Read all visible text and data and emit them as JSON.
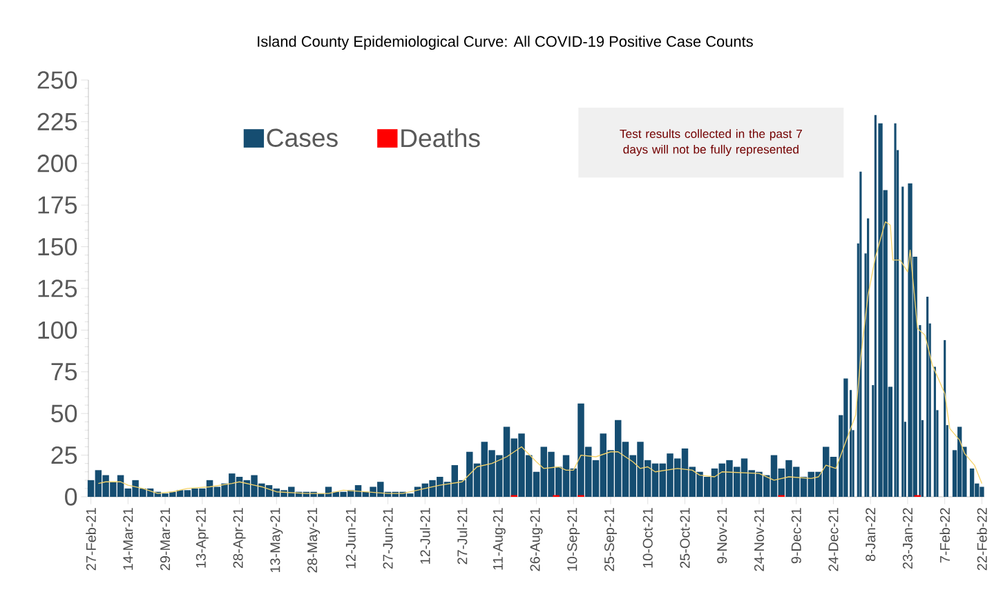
{
  "chart_data": {
    "type": "bar",
    "title": "Island County Epidemiological Curve: All COVID-19 Positive Case Counts",
    "annotations": [
      "Test results collected in the past 7 days will not be fully represented"
    ],
    "xlim": [
      "2021-02-26",
      "2022-02-23"
    ],
    "xticks": [
      {
        "value": "2021-02-27",
        "label": "27-Feb-21"
      },
      {
        "value": "2021-03-14",
        "label": "14-Mar-21"
      },
      {
        "value": "2021-03-29",
        "label": "29-Mar-21"
      },
      {
        "value": "2021-04-13",
        "label": "13-Apr-21"
      },
      {
        "value": "2021-04-28",
        "label": "28-Apr-21"
      },
      {
        "value": "2021-05-13",
        "label": "13-May-21"
      },
      {
        "value": "2021-05-28",
        "label": "28-May-21"
      },
      {
        "value": "2021-06-12",
        "label": "12-Jun-21"
      },
      {
        "value": "2021-06-27",
        "label": "27-Jun-21"
      },
      {
        "value": "2021-07-12",
        "label": "12-Jul-21"
      },
      {
        "value": "2021-07-27",
        "label": "27-Jul-21"
      },
      {
        "value": "2021-08-11",
        "label": "11-Aug-21"
      },
      {
        "value": "2021-08-26",
        "label": "26-Aug-21"
      },
      {
        "value": "2021-09-10",
        "label": "10-Sep-21"
      },
      {
        "value": "2021-09-25",
        "label": "25-Sep-21"
      },
      {
        "value": "2021-10-10",
        "label": "10-Oct-21"
      },
      {
        "value": "2021-10-25",
        "label": "25-Oct-21"
      },
      {
        "value": "2021-11-09",
        "label": "9-Nov-21"
      },
      {
        "value": "2021-11-24",
        "label": "24-Nov-21"
      },
      {
        "value": "2021-12-09",
        "label": "9-Dec-21"
      },
      {
        "value": "2021-12-24",
        "label": "24-Dec-21"
      },
      {
        "value": "2022-01-08",
        "label": "8-Jan-22"
      },
      {
        "value": "2022-01-23",
        "label": "23-Jan-22"
      },
      {
        "value": "2022-02-07",
        "label": "7-Feb-22"
      },
      {
        "value": "2022-02-22",
        "label": "22-Feb-22"
      }
    ],
    "ylim": [
      0,
      250
    ],
    "yticks": [
      0,
      25,
      50,
      75,
      100,
      125,
      150,
      175,
      200,
      225,
      250
    ],
    "legend": "top left",
    "series": [
      {
        "name": "Cases",
        "color": "#154d71",
        "x": [
          "2021-02-27",
          "2021-03-02",
          "2021-03-05",
          "2021-03-08",
          "2021-03-11",
          "2021-03-14",
          "2021-03-17",
          "2021-03-20",
          "2021-03-23",
          "2021-03-26",
          "2021-03-29",
          "2021-04-01",
          "2021-04-04",
          "2021-04-07",
          "2021-04-10",
          "2021-04-13",
          "2021-04-16",
          "2021-04-19",
          "2021-04-22",
          "2021-04-25",
          "2021-04-28",
          "2021-05-01",
          "2021-05-04",
          "2021-05-07",
          "2021-05-10",
          "2021-05-13",
          "2021-05-16",
          "2021-05-19",
          "2021-05-22",
          "2021-05-25",
          "2021-05-28",
          "2021-05-31",
          "2021-06-03",
          "2021-06-06",
          "2021-06-09",
          "2021-06-12",
          "2021-06-15",
          "2021-06-18",
          "2021-06-21",
          "2021-06-24",
          "2021-06-27",
          "2021-06-30",
          "2021-07-03",
          "2021-07-06",
          "2021-07-09",
          "2021-07-12",
          "2021-07-15",
          "2021-07-18",
          "2021-07-21",
          "2021-07-24",
          "2021-07-27",
          "2021-07-30",
          "2021-08-02",
          "2021-08-05",
          "2021-08-08",
          "2021-08-11",
          "2021-08-14",
          "2021-08-17",
          "2021-08-20",
          "2021-08-23",
          "2021-08-26",
          "2021-08-29",
          "2021-09-01",
          "2021-09-04",
          "2021-09-07",
          "2021-09-10",
          "2021-09-13",
          "2021-09-16",
          "2021-09-19",
          "2021-09-22",
          "2021-09-25",
          "2021-09-28",
          "2021-10-01",
          "2021-10-04",
          "2021-10-07",
          "2021-10-10",
          "2021-10-13",
          "2021-10-16",
          "2021-10-19",
          "2021-10-22",
          "2021-10-25",
          "2021-10-28",
          "2021-10-31",
          "2021-11-03",
          "2021-11-06",
          "2021-11-09",
          "2021-11-12",
          "2021-11-15",
          "2021-11-18",
          "2021-11-21",
          "2021-11-24",
          "2021-11-27",
          "2021-11-30",
          "2021-12-03",
          "2021-12-06",
          "2021-12-09",
          "2021-12-12",
          "2021-12-15",
          "2021-12-18",
          "2021-12-21",
          "2021-12-24",
          "2021-12-27",
          "2021-12-29",
          "2021-12-31",
          "2022-01-01",
          "2022-01-03",
          "2022-01-04",
          "2022-01-06",
          "2022-01-07",
          "2022-01-09",
          "2022-01-10",
          "2022-01-12",
          "2022-01-14",
          "2022-01-16",
          "2022-01-18",
          "2022-01-19",
          "2022-01-21",
          "2022-01-22",
          "2022-01-24",
          "2022-01-26",
          "2022-01-28",
          "2022-01-29",
          "2022-01-31",
          "2022-02-01",
          "2022-02-03",
          "2022-02-04",
          "2022-02-07",
          "2022-02-08",
          "2022-02-11",
          "2022-02-13",
          "2022-02-15",
          "2022-02-18",
          "2022-02-20",
          "2022-02-22"
        ],
        "values": [
          10,
          16,
          13,
          9,
          13,
          5,
          10,
          5,
          5,
          3,
          2,
          3,
          4,
          4,
          5,
          5,
          10,
          6,
          8,
          14,
          12,
          10,
          13,
          8,
          7,
          5,
          4,
          6,
          3,
          3,
          3,
          2,
          6,
          3,
          3,
          4,
          7,
          3,
          6,
          9,
          3,
          3,
          3,
          2,
          6,
          8,
          10,
          12,
          9,
          19,
          10,
          27,
          20,
          33,
          28,
          25,
          42,
          35,
          38,
          25,
          15,
          30,
          27,
          18,
          25,
          17,
          56,
          30,
          22,
          38,
          28,
          46,
          33,
          25,
          33,
          22,
          20,
          20,
          26,
          23,
          29,
          18,
          15,
          12,
          17,
          20,
          22,
          18,
          23,
          16,
          15,
          13,
          25,
          17,
          22,
          18,
          12,
          15,
          15,
          30,
          24,
          49,
          71,
          64,
          40,
          152,
          195,
          146,
          167,
          67,
          229,
          224,
          184,
          66,
          224,
          208,
          186,
          45,
          188,
          144,
          103,
          46,
          120,
          104,
          78,
          52,
          94,
          43,
          28,
          42,
          30,
          17,
          8,
          6
        ]
      },
      {
        "name": "Deaths",
        "color": "#ff0000",
        "x": [
          "2021-08-17",
          "2021-09-03",
          "2021-09-13",
          "2021-12-03",
          "2022-01-27"
        ],
        "values": [
          1,
          1,
          1,
          1,
          1
        ]
      },
      {
        "type": "line",
        "color": "#f5d36a",
        "x": [
          "2021-03-02",
          "2021-03-05",
          "2021-03-08",
          "2021-03-11",
          "2021-03-14",
          "2021-03-20",
          "2021-03-26",
          "2021-04-01",
          "2021-04-07",
          "2021-04-16",
          "2021-04-25",
          "2021-04-28",
          "2021-05-04",
          "2021-05-07",
          "2021-05-13",
          "2021-05-25",
          "2021-06-03",
          "2021-06-09",
          "2021-06-18",
          "2021-06-27",
          "2021-07-03",
          "2021-07-12",
          "2021-07-18",
          "2021-07-27",
          "2021-08-02",
          "2021-08-08",
          "2021-08-14",
          "2021-08-20",
          "2021-08-26",
          "2021-08-29",
          "2021-09-04",
          "2021-09-07",
          "2021-09-10",
          "2021-09-13",
          "2021-09-19",
          "2021-09-25",
          "2021-09-28",
          "2021-10-04",
          "2021-10-07",
          "2021-10-10",
          "2021-10-13",
          "2021-10-22",
          "2021-10-28",
          "2021-10-31",
          "2021-11-06",
          "2021-11-09",
          "2021-11-24",
          "2021-11-30",
          "2021-12-06",
          "2021-12-15",
          "2021-12-18",
          "2021-12-21",
          "2021-12-25",
          "2021-12-30",
          "2022-01-02",
          "2022-01-04",
          "2022-01-07",
          "2022-01-10",
          "2022-01-14",
          "2022-01-16",
          "2022-01-17",
          "2022-01-20",
          "2022-01-23",
          "2022-01-24",
          "2022-01-27",
          "2022-01-30",
          "2022-02-02",
          "2022-02-07",
          "2022-02-09",
          "2022-02-13",
          "2022-02-15",
          "2022-02-19",
          "2022-02-22"
        ],
        "values": [
          8,
          9,
          9,
          9,
          7,
          5,
          2,
          3,
          5,
          6,
          8,
          9,
          7,
          6,
          3,
          2,
          2,
          4,
          3,
          2,
          2,
          5,
          7,
          9,
          18,
          20,
          24,
          30,
          21,
          17,
          18,
          16,
          16,
          25,
          24,
          27,
          27,
          21,
          17,
          18,
          15,
          17,
          16,
          13,
          12,
          15,
          14,
          10,
          12,
          11,
          12,
          19,
          17,
          37,
          49,
          83,
          121,
          144,
          165,
          163,
          142,
          142,
          135,
          148,
          101,
          97,
          79,
          62,
          41,
          34,
          26,
          19,
          8
        ]
      }
    ]
  }
}
